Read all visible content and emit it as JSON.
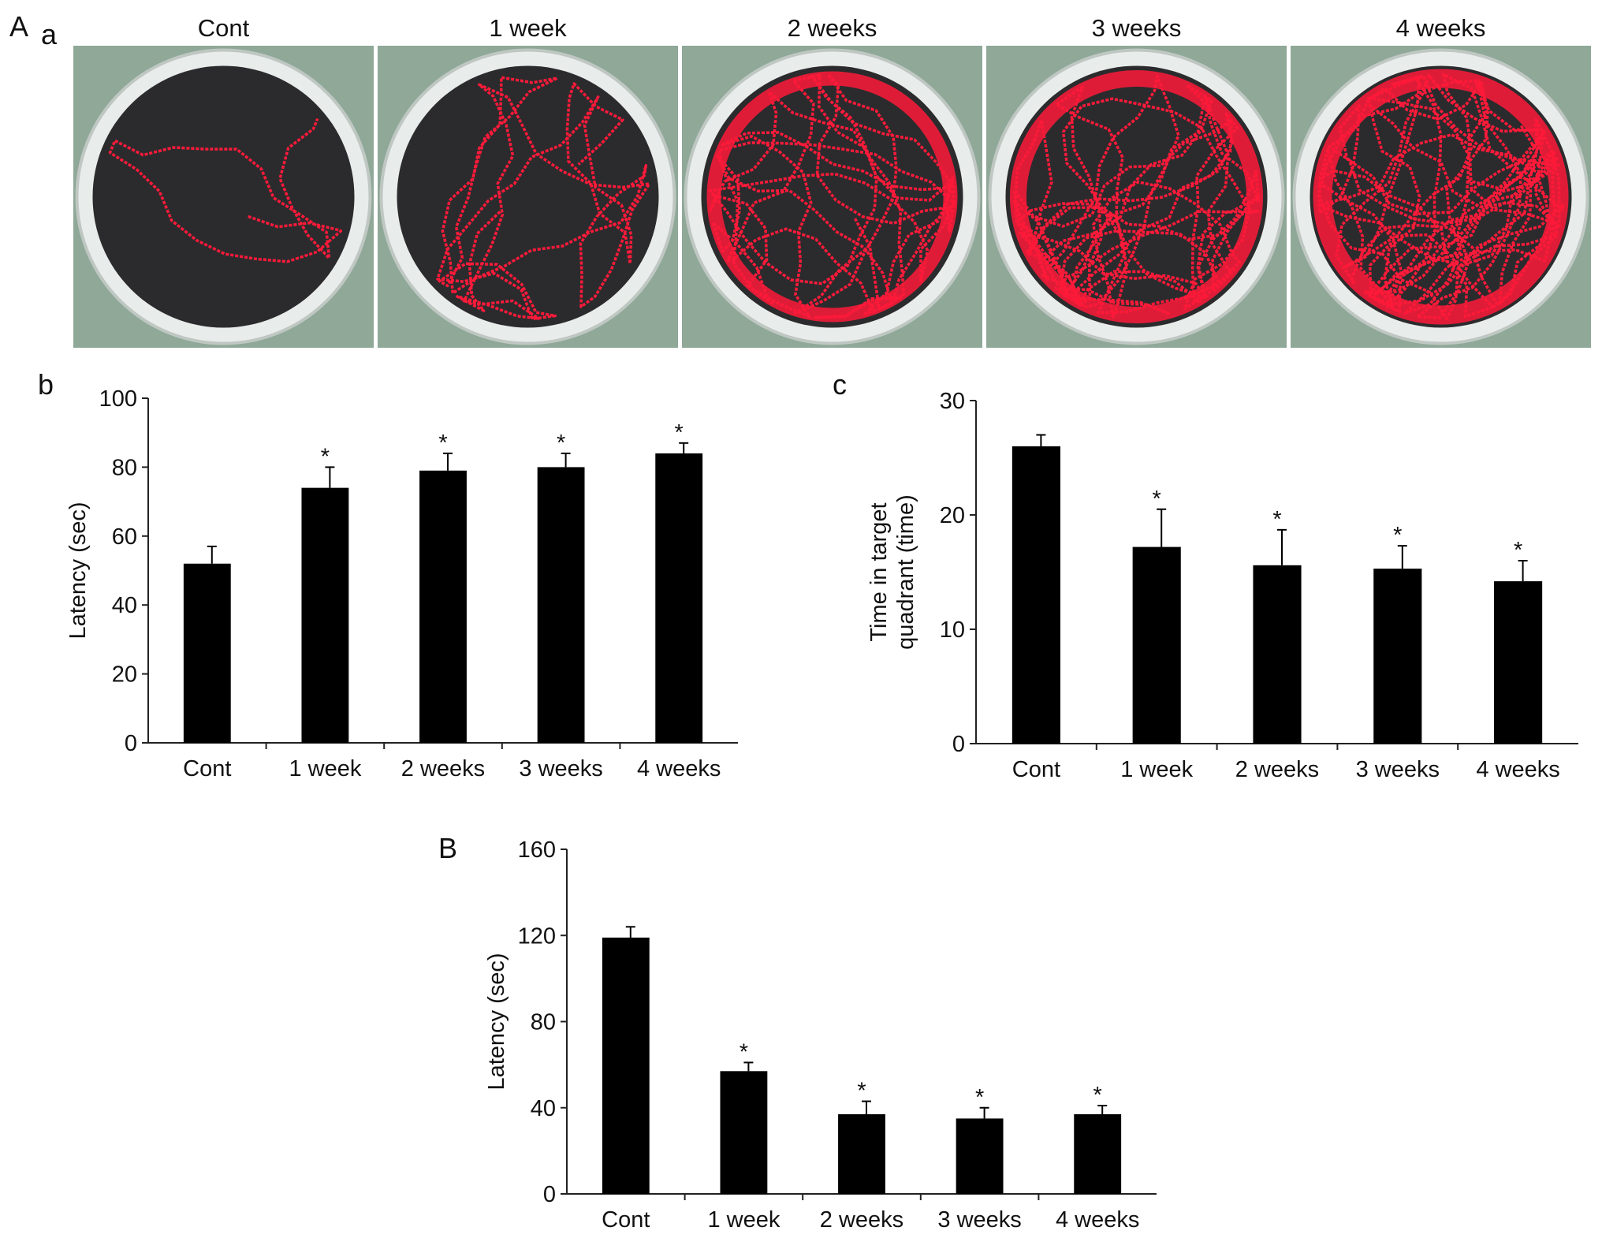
{
  "panels": {
    "A": "A",
    "a": "a"
  },
  "photos": {
    "titles": [
      "Cont",
      "1 week",
      "2 weeks",
      "3 weeks",
      "4 weeks"
    ]
  },
  "chart_data": [
    {
      "type": "bar",
      "panel": "b",
      "ylabel": [
        "Latency (sec)"
      ],
      "categories": [
        "Cont",
        "1 week",
        "2 weeks",
        "3 weeks",
        "4 weeks"
      ],
      "values": [
        52,
        74,
        79,
        80,
        84
      ],
      "errors": [
        5,
        6,
        5,
        4,
        3
      ],
      "annotations": [
        null,
        "*",
        "*",
        "*",
        "*"
      ],
      "color": "#000000",
      "ylim": [
        0,
        100
      ],
      "yticks": [
        0,
        20,
        40,
        60,
        80,
        100
      ]
    },
    {
      "type": "bar",
      "panel": "c",
      "ylabel": [
        "Time in target",
        "quadrant (time)"
      ],
      "categories": [
        "Cont",
        "1 week",
        "2 weeks",
        "3 weeks",
        "4 weeks"
      ],
      "values": [
        26,
        17.2,
        15.6,
        15.3,
        14.2
      ],
      "errors": [
        1,
        3.3,
        3.1,
        2,
        1.8
      ],
      "annotations": [
        null,
        "*",
        "*",
        "*",
        "*"
      ],
      "color": "#000000",
      "ylim": [
        0,
        30
      ],
      "yticks": [
        0,
        10,
        20,
        30
      ]
    },
    {
      "type": "bar",
      "panel": "B",
      "ylabel": [
        "Latency (sec)"
      ],
      "categories": [
        "Cont",
        "1 week",
        "2 weeks",
        "3 weeks",
        "4 weeks"
      ],
      "values": [
        119,
        57,
        37,
        35,
        37
      ],
      "errors": [
        5,
        4,
        6,
        5,
        4
      ],
      "annotations": [
        null,
        "*",
        "*",
        "*",
        "*"
      ],
      "color": "#000000",
      "ylim": [
        0,
        160
      ],
      "yticks": [
        0,
        40,
        80,
        120,
        160
      ]
    }
  ]
}
